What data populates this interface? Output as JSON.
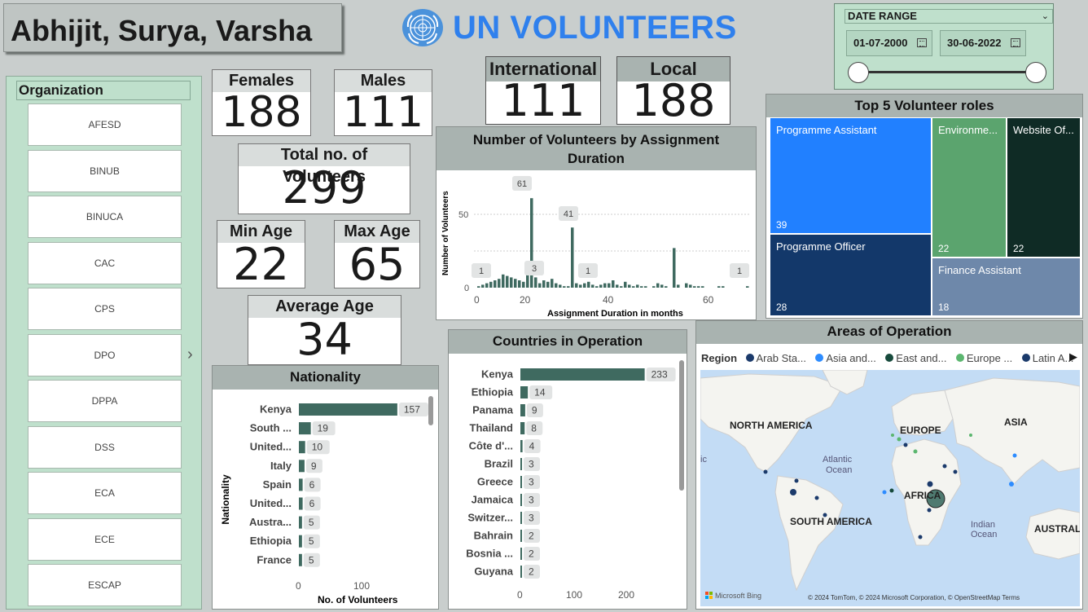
{
  "header": {
    "authors": "Abhijit, Surya, Varsha",
    "title": "UN VOLUNTEERS"
  },
  "date_range": {
    "label": "DATE RANGE",
    "start": "01-07-2000",
    "end": "30-06-2022",
    "slider_start_fraction": 0,
    "slider_end_fraction": 1
  },
  "organization": {
    "label": "Organization",
    "items": [
      "AFESD",
      "BINUB",
      "BINUCA",
      "CAC",
      "CPS",
      "DPO",
      "DPPA",
      "DSS",
      "ECA",
      "ECE",
      "ESCAP"
    ]
  },
  "kpis": {
    "females": {
      "label": "Females",
      "value": "188"
    },
    "males": {
      "label": "Males",
      "value": "111"
    },
    "international": {
      "label": "International",
      "value": "111"
    },
    "local": {
      "label": "Local",
      "value": "188"
    },
    "total": {
      "label": "Total no. of Volunteers",
      "value": "299"
    },
    "min_age": {
      "label": "Min Age",
      "value": "22"
    },
    "max_age": {
      "label": "Max Age",
      "value": "65"
    },
    "avg_age": {
      "label": "Average Age",
      "value": "34"
    }
  },
  "duration_chart": {
    "title_line1": "Number of Volunteers by Assignment",
    "title_line2": "Duration",
    "xlabel": "Assignment Duration in months",
    "ylabel": "Number of Volunteers",
    "xticks": [
      "0",
      "20",
      "40",
      "60"
    ],
    "yticks": [
      "0",
      "50"
    ],
    "data_labels": [
      "1",
      "61",
      "3",
      "41",
      "1",
      "1"
    ]
  },
  "roles": {
    "title": "Top 5 Volunteer roles",
    "items": [
      {
        "label": "Programme Assistant",
        "value": "39",
        "color": "#2180ff"
      },
      {
        "label": "Environme...",
        "value": "22",
        "color": "#5ba46e"
      },
      {
        "label": "Website Of...",
        "value": "22",
        "color": "#0f2b25"
      },
      {
        "label": "Programme Officer",
        "value": "28",
        "color": "#13386a"
      },
      {
        "label": "Finance Assistant",
        "value": "18",
        "color": "#6e88aa"
      }
    ]
  },
  "nationality_chart": {
    "title": "Nationality",
    "xlabel": "No. of Volunteers",
    "ylabel": "Nationality",
    "xticks": [
      "0",
      "100"
    ],
    "categories": [
      "Kenya",
      "South ...",
      "United...",
      "Italy",
      "Spain",
      "United...",
      "Austra...",
      "Ethiopia",
      "France"
    ],
    "values": [
      157,
      19,
      10,
      9,
      6,
      6,
      5,
      5,
      5
    ],
    "bar_color": "#3f6a60"
  },
  "countries_chart": {
    "title": "Countries in Operation",
    "xticks": [
      "0",
      "100",
      "200"
    ],
    "categories": [
      "Kenya",
      "Ethiopia",
      "Panama",
      "Thailand",
      "Côte d'...",
      "Brazil",
      "Greece",
      "Jamaica",
      "Switzer...",
      "Bahrain",
      "Bosnia ...",
      "Guyana"
    ],
    "values": [
      233,
      14,
      9,
      8,
      4,
      3,
      3,
      3,
      3,
      2,
      2,
      2
    ],
    "bar_color": "#3f6a60"
  },
  "map": {
    "title": "Areas of Operation",
    "legend_title": "Region",
    "legend": [
      {
        "label": "Arab Sta...",
        "color": "#1b3a6b"
      },
      {
        "label": "Asia and...",
        "color": "#2d8cff"
      },
      {
        "label": "East and...",
        "color": "#174a3c"
      },
      {
        "label": "Europe ...",
        "color": "#5bb66f"
      },
      {
        "label": "Latin A...",
        "color": "#1b3a6b"
      }
    ],
    "labels": {
      "north_america": "NORTH AMERICA",
      "europe": "EUROPE",
      "asia": "ASIA",
      "atlantic": "Atlantic",
      "ocean": "Ocean",
      "ic": "ic",
      "africa": "AFRICA",
      "south_america": "SOUTH AMERICA",
      "indian": "Indian",
      "indian_ocean": "Ocean",
      "australia": "AUSTRALIA"
    },
    "bing": "Microsoft Bing",
    "attribution": "© 2024 TomTom, © 2024 Microsoft Corporation, © OpenStreetMap  Terms"
  }
}
